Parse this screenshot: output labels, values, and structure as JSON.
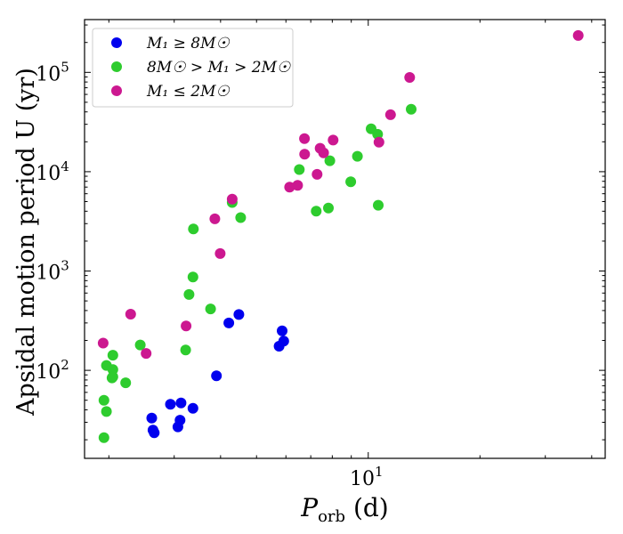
{
  "chart_data": {
    "type": "scatter",
    "xscale": "log",
    "yscale": "log",
    "xlim": [
      1.72,
      43.5
    ],
    "ylim": [
      13,
      340000
    ],
    "grid": false,
    "legend_position": "top-left",
    "xlabel": {
      "main": "P",
      "sub": "orb",
      "rest": " (d)"
    },
    "ylabel": "Apsidal motion period U (yr)",
    "xticks": [
      {
        "value": 10,
        "base": "10",
        "exp": "1"
      }
    ],
    "yticks": [
      {
        "value": 100,
        "base": "10",
        "exp": "2"
      },
      {
        "value": 1000,
        "base": "10",
        "exp": "3"
      },
      {
        "value": 10000,
        "base": "10",
        "exp": "4"
      },
      {
        "value": 100000,
        "base": "10",
        "exp": "5"
      }
    ],
    "series": [
      {
        "name": "M₁ ≥ 8M☉",
        "color": "#0000ee",
        "points": [
          [
            2.61,
            33
          ],
          [
            2.63,
            25
          ],
          [
            2.65,
            23.5
          ],
          [
            2.93,
            45.5
          ],
          [
            3.07,
            27
          ],
          [
            3.13,
            47
          ],
          [
            3.11,
            31.5
          ],
          [
            3.37,
            41.5
          ],
          [
            3.9,
            88
          ],
          [
            4.21,
            300
          ],
          [
            4.48,
            365
          ],
          [
            5.75,
            175
          ],
          [
            5.86,
            250
          ],
          [
            5.92,
            197
          ]
        ]
      },
      {
        "name": "8M☉ > M₁ > 2M☉",
        "color": "#2ecc2e",
        "points": [
          [
            1.94,
            21
          ],
          [
            1.94,
            50
          ],
          [
            1.97,
            112
          ],
          [
            1.97,
            38.5
          ],
          [
            2.05,
            142
          ],
          [
            2.05,
            102
          ],
          [
            2.05,
            86
          ],
          [
            2.04,
            84
          ],
          [
            2.22,
            75
          ],
          [
            2.43,
            180
          ],
          [
            3.22,
            160
          ],
          [
            3.29,
            580
          ],
          [
            3.38,
            2650
          ],
          [
            3.37,
            870
          ],
          [
            3.76,
            415
          ],
          [
            4.3,
            4900
          ],
          [
            4.53,
            3450
          ],
          [
            6.52,
            10500
          ],
          [
            7.24,
            4000
          ],
          [
            7.81,
            4300
          ],
          [
            7.88,
            12900
          ],
          [
            8.97,
            7900
          ],
          [
            9.35,
            14300
          ],
          [
            10.18,
            27000
          ],
          [
            10.6,
            23800
          ],
          [
            10.64,
            4600
          ],
          [
            13.05,
            42500
          ]
        ]
      },
      {
        "name": "M₁ ≤ 2M☉",
        "color": "#cc1890",
        "points": [
          [
            1.93,
            188
          ],
          [
            2.29,
            368
          ],
          [
            2.52,
            148
          ],
          [
            3.23,
            280
          ],
          [
            3.86,
            3350
          ],
          [
            3.99,
            1500
          ],
          [
            4.3,
            5300
          ],
          [
            6.14,
            7000
          ],
          [
            6.45,
            7300
          ],
          [
            6.74,
            15000
          ],
          [
            6.73,
            21500
          ],
          [
            7.28,
            9400
          ],
          [
            7.42,
            17200
          ],
          [
            7.58,
            15500
          ],
          [
            8.04,
            20800
          ],
          [
            10.69,
            19800
          ],
          [
            11.48,
            37500
          ],
          [
            12.93,
            89000
          ],
          [
            36.8,
            235000
          ]
        ]
      }
    ]
  }
}
